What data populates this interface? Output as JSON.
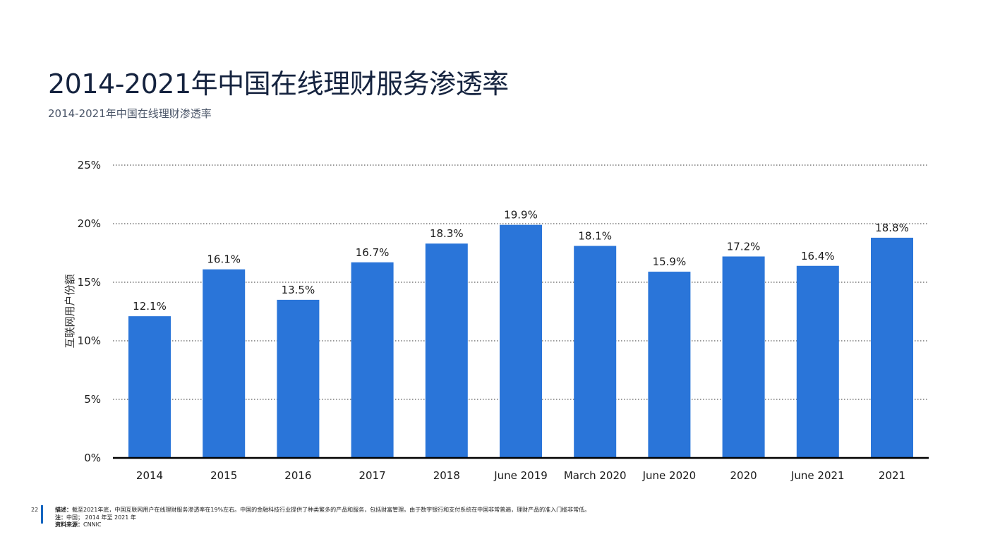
{
  "page": {
    "title": "2014-2021年中国在线理财服务渗透率",
    "subtitle": "2014-2021年中国在线理财渗透率",
    "page_number": "22"
  },
  "footer": {
    "description_label": "描述：",
    "description": "截至2021年底，中国互联网用户在线理财服务渗透率在19%左右。中国的金融科技行业提供了种类繁多的产品和服务，包括财富管理。由于数字银行和支付系统在中国非常普遍，理财产品的准入门槛非常低。",
    "note_label": "注：",
    "note": "中国； 2014 年至 2021 年",
    "source_label": "资料来源：",
    "source": "CNNIC"
  },
  "colors": {
    "bar": "#2a75d9",
    "grid": "#333333",
    "axis": "#000000",
    "text": "#1b2a44",
    "accent": "#1565c0"
  },
  "chart_data": {
    "type": "bar",
    "categories": [
      "2014",
      "2015",
      "2016",
      "2017",
      "2018",
      "June 2019",
      "March 2020",
      "June 2020",
      "2020",
      "June 2021",
      "2021"
    ],
    "values": [
      12.1,
      16.1,
      13.5,
      16.7,
      18.3,
      19.9,
      18.1,
      15.9,
      17.2,
      16.4,
      18.8
    ],
    "data_labels": [
      "12.1%",
      "16.1%",
      "13.5%",
      "16.7%",
      "18.3%",
      "19.9%",
      "18.1%",
      "15.9%",
      "17.2%",
      "16.4%",
      "18.8%"
    ],
    "ylabel": "互联网用户份额",
    "xlabel": "",
    "ylim": [
      0,
      25
    ],
    "yticks": [
      0,
      5,
      10,
      15,
      20,
      25
    ],
    "ytick_labels": [
      "0%",
      "5%",
      "10%",
      "15%",
      "20%",
      "25%"
    ],
    "grid": "horizontal dotted",
    "legend": "none"
  }
}
